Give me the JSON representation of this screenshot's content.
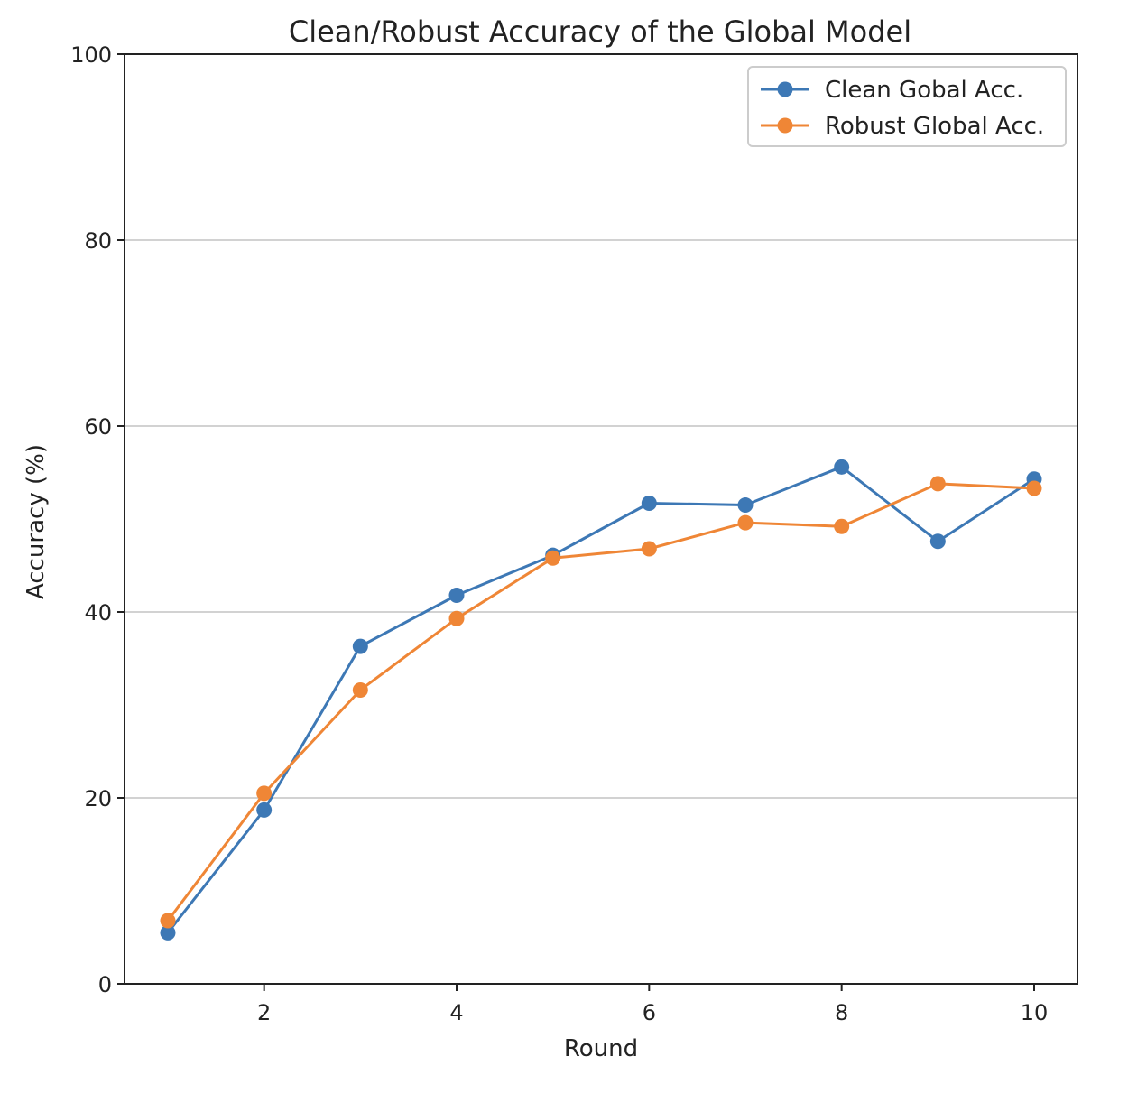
{
  "chart_data": {
    "type": "line",
    "title": "Clean/Robust Accuracy of the Global Model",
    "xlabel": "Round",
    "ylabel": "Accuracy (%)",
    "x": [
      1,
      2,
      3,
      4,
      5,
      6,
      7,
      8,
      9,
      10
    ],
    "xticks": [
      2,
      4,
      6,
      8,
      10
    ],
    "xlim": [
      0.55,
      10.45
    ],
    "yticks": [
      0,
      20,
      40,
      60,
      80,
      100
    ],
    "ylim": [
      0,
      100
    ],
    "grid": "horizontal",
    "legend_position": "top-right",
    "series": [
      {
        "name": "Clean Gobal Acc.",
        "color": "#3d78b5",
        "marker": "circle",
        "values": [
          5.5,
          18.7,
          36.3,
          41.8,
          46.1,
          51.7,
          51.5,
          55.6,
          47.6,
          54.3
        ]
      },
      {
        "name": "Robust Global Acc.",
        "color": "#ef8636",
        "marker": "circle",
        "values": [
          6.8,
          20.5,
          31.6,
          39.3,
          45.8,
          46.8,
          49.6,
          49.2,
          53.8,
          53.3
        ]
      }
    ]
  }
}
